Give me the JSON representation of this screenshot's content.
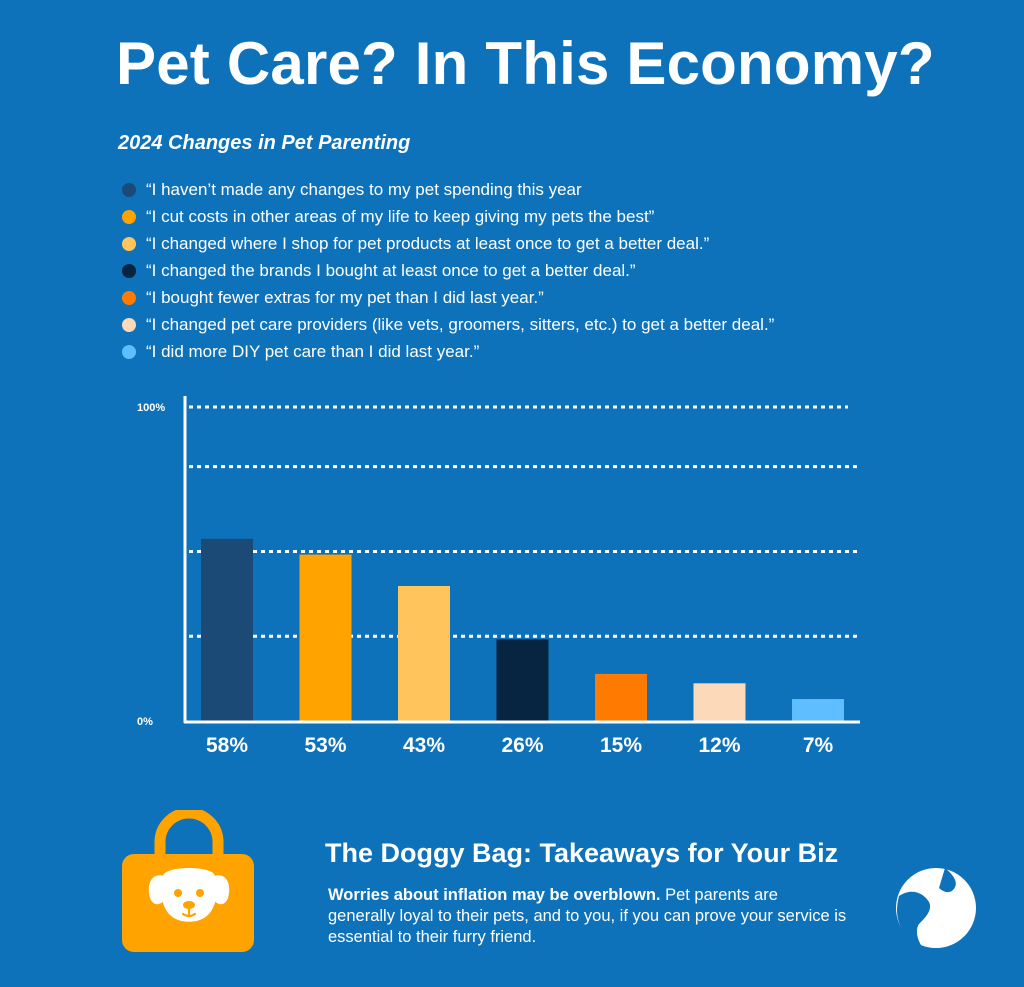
{
  "title": "Pet Care? In This Economy?",
  "chart_data": {
    "type": "bar",
    "subtitle": "2024 Changes in Pet Parenting",
    "categories": [
      "“I haven’t made any changes to my pet spending this year",
      "“I cut costs in other areas of my life to keep giving my pets the best”",
      "“I changed where I shop for pet products at least once to get a better deal.”",
      "“I changed the brands I bought at least once to get a better deal.”",
      "“I bought fewer extras for my pet than I did last year.”",
      "“I changed pet care providers (like vets, groomers, sitters, etc.) to get a better deal.”",
      "“I did more DIY pet care than I did last year.”"
    ],
    "values": [
      58,
      53,
      43,
      26,
      15,
      12,
      7
    ],
    "value_labels": [
      "58%",
      "53%",
      "43%",
      "26%",
      "15%",
      "12%",
      "7%"
    ],
    "colors": [
      "#1b4a77",
      "#ffa300",
      "#ffc55c",
      "#072440",
      "#ff7a00",
      "#fcd9b8",
      "#5ebeff"
    ],
    "ylim": [
      0,
      100
    ],
    "yticks": [
      0,
      27,
      54,
      81,
      100
    ],
    "ytick_labels": [
      "0%",
      "100%"
    ],
    "grid": "dotted",
    "legend_placement": "top-left"
  },
  "takeaway": {
    "title": "The Doggy Bag: Takeaways for Your Biz",
    "bold": "Worries about inflation may be overblown.",
    "text": " Pet parents are generally loyal to their pets, and to you, if you can prove your service is essential to their furry friend."
  },
  "icons": {
    "bag": "shopping-bag-dog-icon",
    "logo": "dog-head-logo-icon"
  },
  "colors": {
    "background": "#0d72b9",
    "bag": "#ffa300"
  }
}
